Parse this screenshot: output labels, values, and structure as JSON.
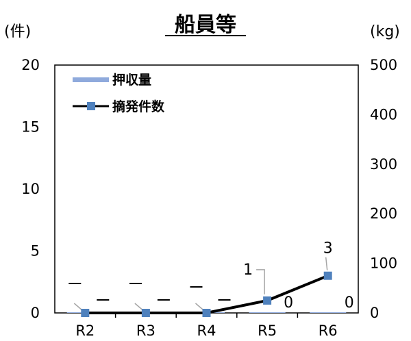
{
  "chart_data": {
    "type": "bar+line",
    "title": "船員等",
    "left_unit": "(件)",
    "right_unit": "(kg)",
    "categories": [
      "R2",
      "R3",
      "R4",
      "R5",
      "R6"
    ],
    "left_ticks": [
      "0",
      "5",
      "10",
      "15",
      "20"
    ],
    "right_ticks": [
      "0",
      "100",
      "200",
      "300",
      "400",
      "500"
    ],
    "ylim_left": [
      0,
      20
    ],
    "ylim_right": [
      0,
      500
    ],
    "legend_placement": "top-left",
    "series": [
      {
        "name": "押収量",
        "type": "bar",
        "axis": "right",
        "color": "#8faadc",
        "values": [
          0,
          0,
          0,
          0,
          0
        ],
        "data_labels": [
          "",
          "",
          "",
          "0",
          "0"
        ]
      },
      {
        "name": "摘発件数",
        "type": "line",
        "axis": "left",
        "color": "#000000",
        "marker_color": "#4f81bd",
        "values": [
          0,
          0,
          0,
          1,
          3
        ],
        "data_labels": [
          "",
          "",
          "",
          "1",
          "3"
        ]
      }
    ]
  }
}
